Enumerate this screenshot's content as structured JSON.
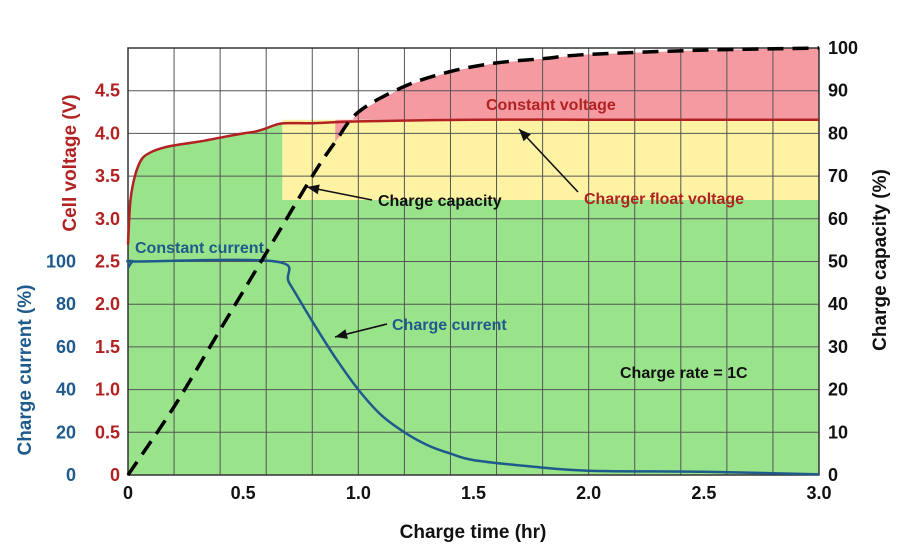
{
  "colors": {
    "voltage": "#b22222",
    "current": "#1f5a8c",
    "capacity": "#000000",
    "text": "#111111",
    "cc_region": "#99e38b",
    "cv_region": "#f49aa0",
    "float_region": "#fdf3a2",
    "grid": "#555555"
  },
  "chart_data": {
    "type": "line",
    "xlabel": "Charge time (hr)",
    "ylabel_voltage": "Cell voltage (V)",
    "ylabel_current": "Charge current (%)",
    "ylabel_capacity": "Charge capacity (%)",
    "x_ticks": [
      "0",
      "0.5",
      "1.0",
      "1.5",
      "2.0",
      "2.5",
      "3.0"
    ],
    "voltage_ticks": [
      "3.0",
      "3.5",
      "4.0",
      "4.5",
      "2.5",
      "2.0",
      "1.5",
      "1.0",
      "0.5",
      "0"
    ],
    "current_ticks": [
      "100",
      "80",
      "60",
      "40",
      "20",
      "0"
    ],
    "capacity_ticks": [
      "0",
      "10",
      "20",
      "30",
      "40",
      "50",
      "60",
      "70",
      "80",
      "90",
      "100"
    ],
    "xlim": [
      0,
      3
    ],
    "ylim_voltage": [
      0,
      5
    ],
    "ylim_current": [
      0,
      200
    ],
    "ylim_capacity": [
      0,
      100
    ],
    "grid": true,
    "series": [
      {
        "name": "Cell voltage",
        "axis": "voltage",
        "x": [
          0,
          0.01,
          0.03,
          0.06,
          0.1,
          0.15,
          0.2,
          0.3,
          0.4,
          0.5,
          0.55,
          0.6,
          0.64,
          0.68,
          0.8,
          1.0,
          1.5,
          2.0,
          2.5,
          3.0
        ],
        "y": [
          2.7,
          3.2,
          3.5,
          3.7,
          3.78,
          3.83,
          3.86,
          3.9,
          3.95,
          4.0,
          4.02,
          4.06,
          4.1,
          4.12,
          4.12,
          4.14,
          4.16,
          4.16,
          4.16,
          4.16
        ]
      },
      {
        "name": "Charge current",
        "axis": "current",
        "x": [
          0,
          0.02,
          0.05,
          0.64,
          0.7,
          0.8,
          0.9,
          1.0,
          1.1,
          1.2,
          1.3,
          1.4,
          1.5,
          1.75,
          2.0,
          2.5,
          3.0
        ],
        "y": [
          97,
          100,
          100,
          100,
          90,
          72,
          55,
          40,
          28,
          20,
          14,
          10,
          7,
          4,
          2,
          1.5,
          0.3
        ]
      },
      {
        "name": "Charge capacity",
        "axis": "capacity",
        "x": [
          0,
          0.2,
          0.4,
          0.6,
          0.8,
          0.9,
          1.0,
          1.2,
          1.4,
          1.6,
          1.8,
          2.0,
          2.5,
          3.0
        ],
        "y": [
          0,
          16,
          34,
          52,
          70,
          78,
          85,
          91,
          94.5,
          96.5,
          97.5,
          98.5,
          99.5,
          100
        ]
      }
    ],
    "annotations": {
      "constant_voltage": "Constant voltage",
      "constant_current": "Constant current",
      "charge_capacity": "Charge capacity",
      "charger_float_voltage": "Charger float voltage",
      "charge_current": "Charge current",
      "charge_rate": "Charge rate = 1C"
    }
  }
}
